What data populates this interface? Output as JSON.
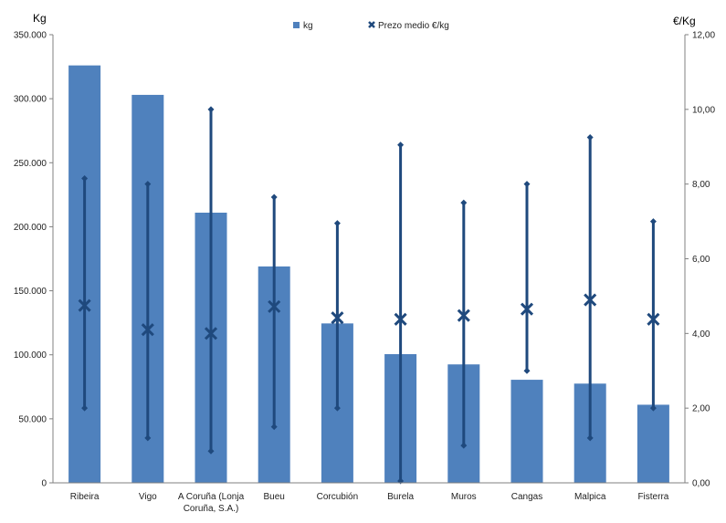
{
  "chart_data": {
    "type": "bar",
    "categories": [
      "Ribeira",
      "Vigo",
      "A Coruña (Lonja",
      "Bueu",
      "Corcubión",
      "Burela",
      "Muros",
      "Cangas",
      "Malpica",
      "Fisterra"
    ],
    "category_second_lines": [
      "",
      "",
      "Coruña, S.A.)",
      "",
      "",
      "",
      "",
      "",
      "",
      ""
    ],
    "series": [
      {
        "name": "kg",
        "type": "bar",
        "axis": "left",
        "values": [
          326000,
          303000,
          211000,
          169000,
          124500,
          100500,
          92500,
          80500,
          77500,
          61000
        ]
      },
      {
        "name": "Prezo medio €/kg",
        "type": "marker",
        "axis": "right",
        "values": [
          4.75,
          4.1,
          4.0,
          4.72,
          4.42,
          4.38,
          4.48,
          4.65,
          4.9,
          4.38
        ],
        "max": [
          8.15,
          8.0,
          10.0,
          7.65,
          6.95,
          9.05,
          7.5,
          8.0,
          9.25,
          7.0
        ],
        "min": [
          2.0,
          1.2,
          0.85,
          1.5,
          2.0,
          0.05,
          1.0,
          3.0,
          1.2,
          2.0
        ]
      }
    ],
    "ylabel_left": "Kg",
    "ylabel_right": "€/Kg",
    "ylim_left": [
      0,
      350000
    ],
    "ylim_right": [
      0,
      12
    ],
    "yticks_left": [
      "0",
      "50.000",
      "100.000",
      "150.000",
      "200.000",
      "250.000",
      "300.000",
      "350.000"
    ],
    "yticks_right": [
      "0,00",
      "2,00",
      "4,00",
      "6,00",
      "8,00",
      "10,00",
      "12,00"
    ],
    "legend": [
      "kg",
      "Prezo medio €/kg"
    ],
    "legend_position": "top-center",
    "grid": false,
    "colors": {
      "bar": "#4f81bd",
      "marker": "#1f497d",
      "axis": "#808080"
    }
  }
}
